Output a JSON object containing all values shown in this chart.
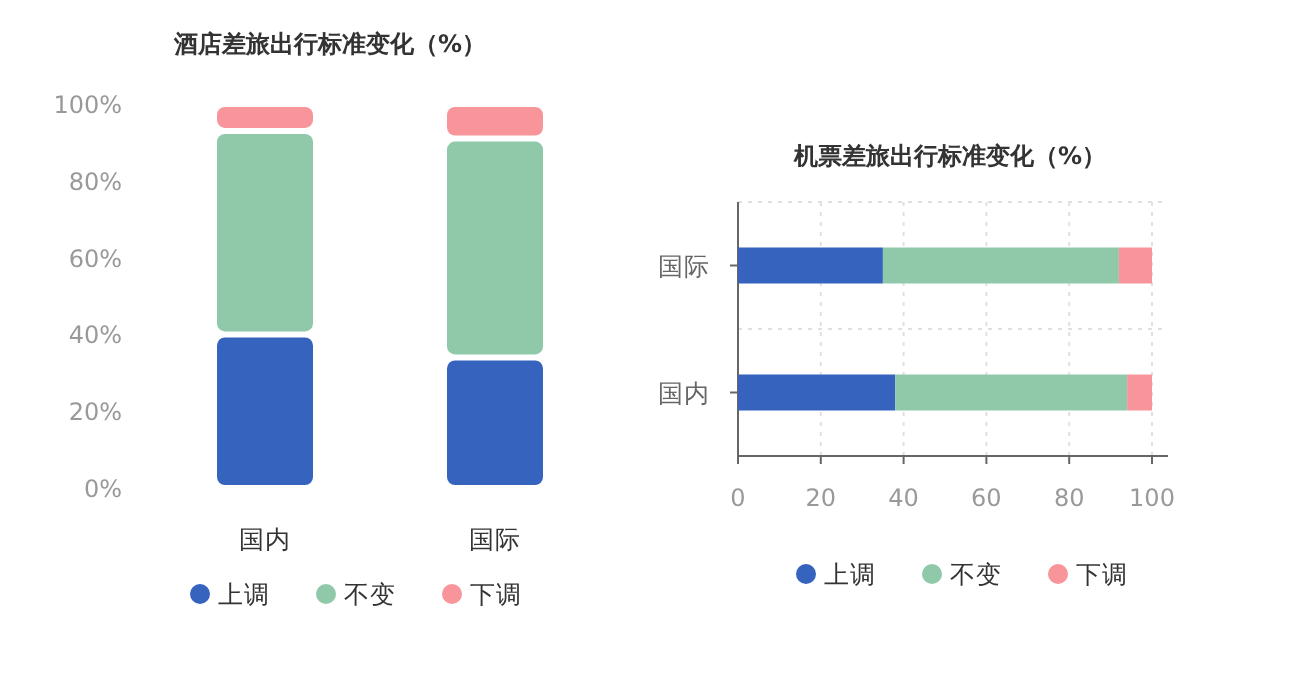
{
  "chart_data": [
    {
      "type": "bar",
      "title": "酒店差旅出行标准变化（%）",
      "stacked": true,
      "categories": [
        "国内",
        "国际"
      ],
      "series": [
        {
          "name": "上调",
          "color": "#3563be",
          "values": [
            40,
            34
          ]
        },
        {
          "name": "不变",
          "color": "#8fc9aa",
          "values": [
            53,
            57
          ]
        },
        {
          "name": "下调",
          "color": "#f7959a",
          "values": [
            7,
            9
          ]
        }
      ],
      "ylim": [
        0,
        100
      ],
      "yticks": [
        {
          "value": 0,
          "label": "0%"
        },
        {
          "value": 20,
          "label": "20%"
        },
        {
          "value": 40,
          "label": "40%"
        },
        {
          "value": 60,
          "label": "60%"
        },
        {
          "value": 80,
          "label": "80%"
        },
        {
          "value": 100,
          "label": "100%"
        }
      ],
      "legend": "bottom"
    },
    {
      "type": "bar",
      "title": "机票差旅出行标准变化（%）",
      "stacked": true,
      "orientation": "horizontal",
      "categories": [
        "国际",
        "国内"
      ],
      "series": [
        {
          "name": "上调",
          "color": "#3563be",
          "values": [
            35,
            38
          ]
        },
        {
          "name": "不变",
          "color": "#8fc9aa",
          "values": [
            57,
            56
          ]
        },
        {
          "name": "下调",
          "color": "#f7959a",
          "values": [
            8,
            6
          ]
        }
      ],
      "xlim": [
        0,
        100
      ],
      "xticks": [
        0,
        20,
        40,
        60,
        80,
        100
      ],
      "grid": true,
      "legend": "bottom"
    }
  ]
}
